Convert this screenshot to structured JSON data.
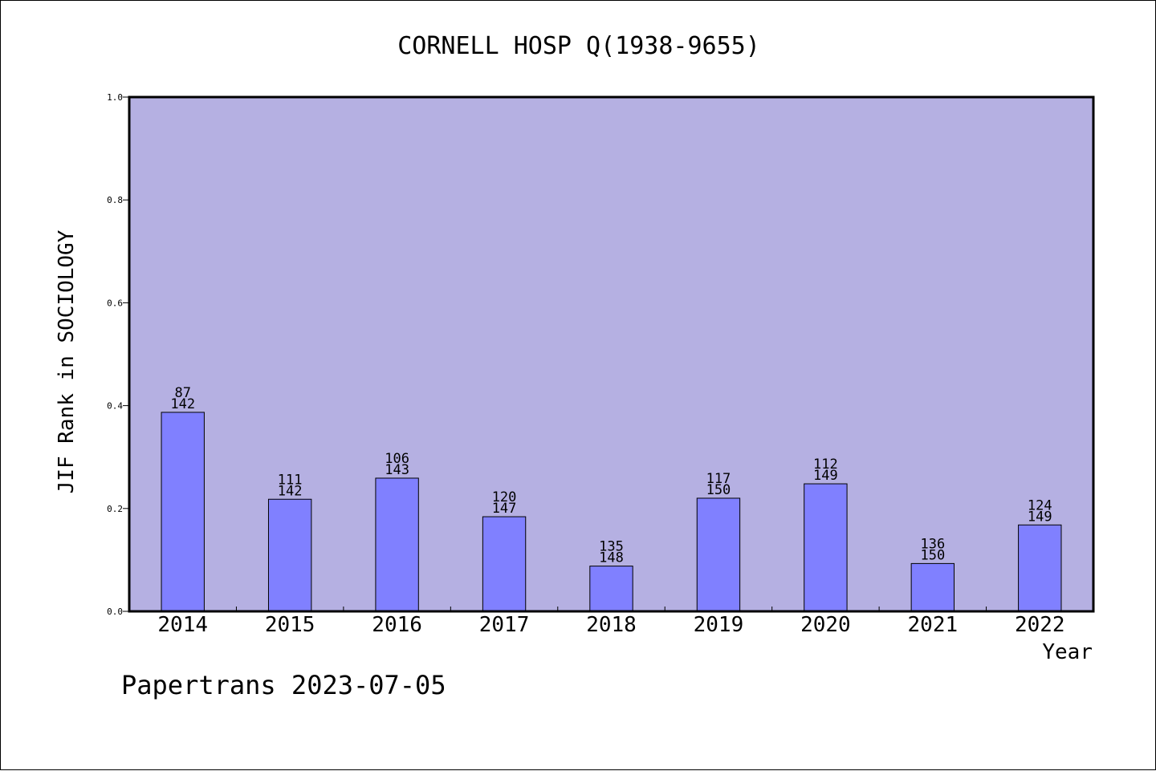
{
  "footer_note": "Papertrans 2023-07-05",
  "colors": {
    "plot_background": "#b5b0e2",
    "bar_fill": "#8080ff",
    "bar_stroke": "#000000",
    "axis": "#000000"
  },
  "chart_data": {
    "type": "bar",
    "title": "CORNELL HOSP Q(1938-9655)",
    "xlabel": "Year",
    "ylabel": "JIF Rank in SOCIOLOGY",
    "ylim": [
      0,
      1.0
    ],
    "yticks": [
      "0.0",
      "0.2",
      "0.4",
      "0.6",
      "0.8",
      "1.0"
    ],
    "categories": [
      "2014",
      "2015",
      "2016",
      "2017",
      "2018",
      "2019",
      "2020",
      "2021",
      "2022"
    ],
    "values": [
      0.387,
      0.218,
      0.259,
      0.184,
      0.088,
      0.22,
      0.248,
      0.093,
      0.168
    ],
    "rank_labels": [
      "87",
      "111",
      "106",
      "120",
      "135",
      "117",
      "112",
      "136",
      "124"
    ],
    "total_labels": [
      "142",
      "142",
      "143",
      "147",
      "148",
      "150",
      "149",
      "150",
      "149"
    ],
    "grid": false,
    "legend": "none"
  }
}
